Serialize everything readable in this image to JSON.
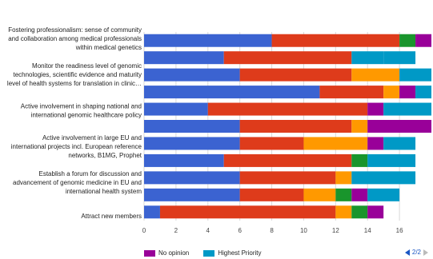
{
  "chart_data": {
    "type": "bar",
    "orientation": "horizontal",
    "stacked": true,
    "grid": true,
    "xlim": [
      0,
      18
    ],
    "xticks": [
      0,
      2,
      4,
      6,
      8,
      10,
      12,
      14,
      16
    ],
    "category_labels": [
      [
        "Fostering professionalism: sense of community",
        "and collaboration among medical professionals",
        "within medical genetics"
      ],
      [
        "Monitor the readiness level of genomic",
        "technologies, scientific evidence and maturity",
        "level of health systems for translation in clinic…"
      ],
      [
        "Active involvement in shaping national and",
        "international genomic healthcare policy"
      ],
      [
        "Active involvement in large EU and",
        "international projects incl. European reference",
        "networks, B1MG, Prophet"
      ],
      [
        "Establish a forum for discussion and",
        "advancement of genomic medicine in EU and",
        "international health system"
      ],
      [
        "Attract new members"
      ]
    ],
    "rows": [
      {
        "segments": [
          8,
          8,
          1,
          1,
          0
        ]
      },
      {
        "segments": [
          5,
          8,
          0,
          2,
          2
        ]
      },
      {
        "segments": [
          6,
          7,
          3,
          0,
          2
        ]
      },
      {
        "segments": [
          11,
          4,
          1,
          1,
          1
        ]
      },
      {
        "segments": [
          4,
          10,
          0,
          1,
          3
        ]
      },
      {
        "segments": [
          6,
          7,
          1,
          4,
          0
        ]
      },
      {
        "segments": [
          6,
          4,
          4,
          1,
          2
        ]
      },
      {
        "segments": [
          5,
          8,
          0,
          1,
          3
        ]
      },
      {
        "segments": [
          6,
          6,
          1,
          0,
          4
        ]
      },
      {
        "segments": [
          6,
          4,
          2,
          1,
          1,
          2
        ]
      },
      {
        "segments": [
          1,
          11,
          1,
          1,
          1
        ]
      }
    ],
    "row_colors": [
      [
        "#3b63d1",
        "#de3b1b",
        "#19952c",
        "#990099",
        "#0099c6"
      ],
      [
        "#3b63d1",
        "#de3b1b",
        "#990099",
        "#0099c6",
        "#0099c6"
      ],
      [
        "#3b63d1",
        "#de3b1b",
        "#ff9900",
        "#990099",
        "#0099c6"
      ],
      [
        "#3b63d1",
        "#de3b1b",
        "#ff9900",
        "#990099",
        "#0099c6"
      ],
      [
        "#3b63d1",
        "#de3b1b",
        "#ff9900",
        "#990099",
        "#0099c6"
      ],
      [
        "#3b63d1",
        "#de3b1b",
        "#ff9900",
        "#990099",
        "#990099"
      ],
      [
        "#3b63d1",
        "#de3b1b",
        "#ff9900",
        "#990099",
        "#0099c6"
      ],
      [
        "#3b63d1",
        "#de3b1b",
        "#19952c",
        "#19952c",
        "#0099c6"
      ],
      [
        "#3b63d1",
        "#de3b1b",
        "#ff9900",
        "#990099",
        "#0099c6"
      ],
      [
        "#3b63d1",
        "#de3b1b",
        "#ff9900",
        "#19952c",
        "#990099",
        "#0099c6"
      ],
      [
        "#3b63d1",
        "#de3b1b",
        "#ff9900",
        "#19952c",
        "#990099"
      ]
    ],
    "legend": [
      {
        "name": "No opinion",
        "color": "#990099"
      },
      {
        "name": "Highest Priority",
        "color": "#0099c6"
      }
    ]
  },
  "pager": {
    "text": "2/2"
  }
}
